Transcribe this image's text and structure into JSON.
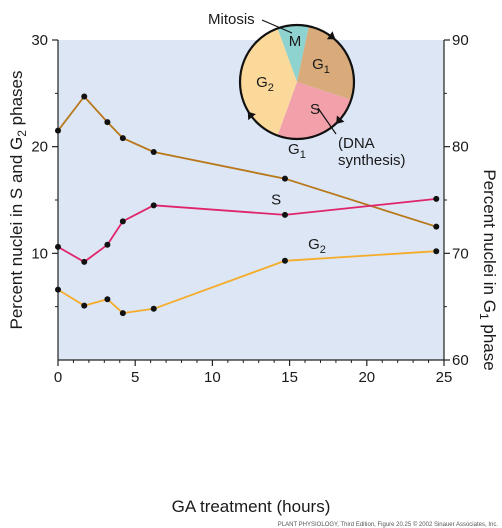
{
  "chart_data": {
    "type": "line",
    "title": "",
    "xlabel": "GA treatment (hours)",
    "ylabel_left": "Percent nuclei in S and G₂ phases",
    "ylabel_right": "Percent nuclei in G₁ phase",
    "xlim": [
      0,
      25
    ],
    "ylim_left": [
      0,
      30
    ],
    "ylim_right": [
      60,
      90
    ],
    "xticks": [
      "0",
      "5",
      "10",
      "15",
      "20",
      "25"
    ],
    "yticks_left": [
      "10",
      "20",
      "30"
    ],
    "yticks_right": [
      "60",
      "70",
      "80",
      "90"
    ],
    "grid": false,
    "series": [
      {
        "name": "G",
        "subscript": "1",
        "axis": "right",
        "color": "#b8781a",
        "x": [
          0,
          1.7,
          3.2,
          4.2,
          6.2,
          14.7,
          24.5
        ],
        "y": [
          81.5,
          84.7,
          82.3,
          80.8,
          79.5,
          77.0,
          72.5
        ]
      },
      {
        "name": "S",
        "subscript": "",
        "axis": "left",
        "color": "#e0246a",
        "x": [
          0,
          1.7,
          3.2,
          4.2,
          6.2,
          14.7,
          24.5
        ],
        "y": [
          10.6,
          9.2,
          10.8,
          13.0,
          14.5,
          13.6,
          15.1
        ]
      },
      {
        "name": "G",
        "subscript": "2",
        "axis": "left",
        "color": "#f5ac2a",
        "x": [
          0,
          1.7,
          3.2,
          4.2,
          6.2,
          14.7,
          24.5
        ],
        "y": [
          6.6,
          5.1,
          5.7,
          4.4,
          4.8,
          9.3,
          10.2
        ]
      }
    ],
    "inset_cycle": {
      "mitosis_label": "Mitosis",
      "phases": [
        {
          "label": "M",
          "subscript": "",
          "color": "#8fd3d0"
        },
        {
          "label": "G",
          "subscript": "1",
          "color": "#d9ab7a"
        },
        {
          "label": "S",
          "subscript": "",
          "color": "#f2a0aa"
        },
        {
          "label": "G",
          "subscript": "2",
          "color": "#fbd99b"
        }
      ],
      "s_annotation": [
        "(DNA",
        "synthesis)"
      ]
    },
    "credit": "PLANT PHYSIOLOGY, Third Edition, Figure 20.25  © 2002 Sinauer Associates, Inc."
  }
}
